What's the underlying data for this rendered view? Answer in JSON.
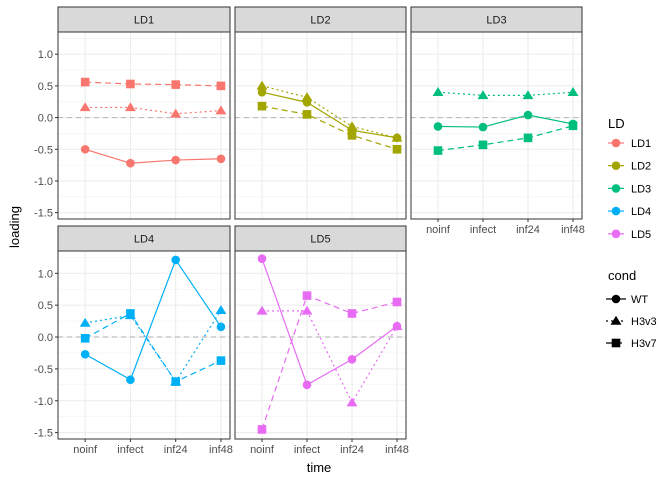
{
  "chart_data": {
    "type": "line",
    "xlabel": "time",
    "ylabel": "loading",
    "categories": [
      "noinf",
      "infect",
      "inf24",
      "inf48"
    ],
    "ylim": [
      -1.6,
      1.35
    ],
    "yticks": [
      -1.5,
      -1.0,
      -0.5,
      0.0,
      0.5,
      1.0
    ],
    "ytick_labels": [
      "-1.5",
      "-1.0",
      "-0.5",
      "0.0",
      "0.5",
      "1.0"
    ],
    "reference_line": 0,
    "grid": true,
    "facet_layout": "3 columns, 2 rows",
    "legend_placement": "right",
    "color_legend": {
      "title": "LD",
      "entries": [
        {
          "name": "LD1",
          "color": "#F8766D"
        },
        {
          "name": "LD2",
          "color": "#A3A500"
        },
        {
          "name": "LD3",
          "color": "#00BF7D"
        },
        {
          "name": "LD4",
          "color": "#00B0F6"
        },
        {
          "name": "LD5",
          "color": "#E76BF3"
        }
      ]
    },
    "cond_legend": {
      "title": "cond",
      "entries": [
        {
          "name": "WT",
          "shape": "circle",
          "linetype": "solid"
        },
        {
          "name": "H3v3",
          "shape": "triangle",
          "linetype": "dotted"
        },
        {
          "name": "H3v7",
          "shape": "square",
          "linetype": "dashed"
        }
      ]
    },
    "panels": [
      {
        "label": "LD1",
        "color": "#F8766D",
        "series": [
          {
            "cond": "WT",
            "values": [
              -0.5,
              -0.72,
              -0.67,
              -0.65
            ]
          },
          {
            "cond": "H3v3",
            "values": [
              0.16,
              0.16,
              0.06,
              0.11
            ]
          },
          {
            "cond": "H3v7",
            "values": [
              0.56,
              0.53,
              0.52,
              0.5
            ]
          }
        ]
      },
      {
        "label": "LD2",
        "color": "#A3A500",
        "series": [
          {
            "cond": "WT",
            "values": [
              0.4,
              0.24,
              -0.2,
              -0.32
            ]
          },
          {
            "cond": "H3v3",
            "values": [
              0.5,
              0.32,
              -0.14,
              -0.32
            ]
          },
          {
            "cond": "H3v7",
            "values": [
              0.18,
              0.05,
              -0.28,
              -0.5
            ]
          }
        ]
      },
      {
        "label": "LD3",
        "color": "#00BF7D",
        "series": [
          {
            "cond": "WT",
            "values": [
              -0.14,
              -0.15,
              0.04,
              -0.1
            ]
          },
          {
            "cond": "H3v3",
            "values": [
              0.4,
              0.35,
              0.35,
              0.4
            ]
          },
          {
            "cond": "H3v7",
            "values": [
              -0.52,
              -0.43,
              -0.32,
              -0.13
            ]
          }
        ]
      },
      {
        "label": "LD4",
        "color": "#00B0F6",
        "series": [
          {
            "cond": "WT",
            "values": [
              -0.27,
              -0.67,
              1.21,
              0.16
            ]
          },
          {
            "cond": "H3v3",
            "values": [
              0.22,
              0.34,
              -0.7,
              0.42
            ]
          },
          {
            "cond": "H3v7",
            "values": [
              -0.02,
              0.37,
              -0.7,
              -0.37
            ]
          }
        ]
      },
      {
        "label": "LD5",
        "color": "#E76BF3",
        "series": [
          {
            "cond": "WT",
            "values": [
              1.23,
              -0.75,
              -0.35,
              0.17
            ]
          },
          {
            "cond": "H3v3",
            "values": [
              0.41,
              0.41,
              -1.03,
              0.17
            ]
          },
          {
            "cond": "H3v7",
            "values": [
              -1.45,
              0.65,
              0.37,
              0.55
            ]
          }
        ]
      }
    ]
  }
}
